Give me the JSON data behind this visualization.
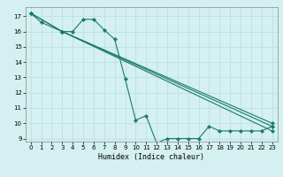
{
  "xlabel": "Humidex (Indice chaleur)",
  "bg_color": "#d4f0f0",
  "grid_color": "#b8dede",
  "line_color": "#1a7a6a",
  "xlim": [
    -0.5,
    23.5
  ],
  "ylim": [
    8.8,
    17.6
  ],
  "yticks": [
    9,
    10,
    11,
    12,
    13,
    14,
    15,
    16,
    17
  ],
  "xticks": [
    0,
    1,
    2,
    3,
    4,
    5,
    6,
    7,
    8,
    9,
    10,
    11,
    12,
    13,
    14,
    15,
    16,
    17,
    18,
    19,
    20,
    21,
    22,
    23
  ],
  "line1_x": [
    0,
    1,
    3,
    4,
    5,
    6,
    7,
    8,
    9,
    10,
    11,
    12,
    13,
    14,
    15,
    16,
    17,
    18,
    19,
    20,
    21,
    22,
    23
  ],
  "line1_y": [
    17.2,
    16.6,
    16.0,
    16.0,
    16.8,
    16.8,
    16.1,
    15.5,
    12.9,
    10.2,
    10.5,
    8.7,
    9.0,
    9.0,
    9.0,
    9.0,
    9.8,
    9.5,
    9.5,
    9.5,
    9.5,
    9.5,
    9.8
  ],
  "line2_x": [
    0,
    3,
    23
  ],
  "line2_y": [
    17.2,
    16.0,
    10.0
  ],
  "line3_x": [
    0,
    3,
    23
  ],
  "line3_y": [
    17.2,
    16.0,
    9.5
  ],
  "line4_x": [
    3,
    23
  ],
  "line4_y": [
    16.0,
    9.8
  ]
}
